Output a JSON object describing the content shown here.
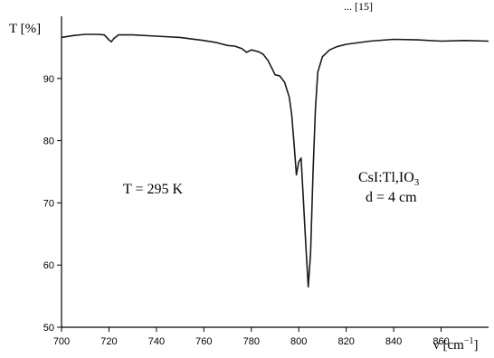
{
  "top_fragment": "... [15]",
  "chart_data": {
    "type": "line",
    "title": "",
    "ylabel": "T [%]",
    "xlabel_main": "ν [cm",
    "xlabel_sup": "−1",
    "xlabel_close": "]",
    "xlim": [
      700,
      880
    ],
    "ylim": [
      50,
      100
    ],
    "x_ticks": [
      700,
      720,
      740,
      760,
      780,
      800,
      820,
      840,
      860
    ],
    "y_ticks": [
      50,
      60,
      70,
      80,
      90
    ],
    "annotations": {
      "temperature": "T = 295 K",
      "sample_main": "CsI:Tl,IO",
      "sample_sub": "3",
      "thickness": "d = 4 cm"
    },
    "series": [
      {
        "color": "#1a1a1a",
        "points": [
          [
            700,
            96.6
          ],
          [
            705,
            96.9
          ],
          [
            710,
            97.1
          ],
          [
            715,
            97.1
          ],
          [
            718,
            97.0
          ],
          [
            720,
            96.2
          ],
          [
            721,
            95.9
          ],
          [
            722,
            96.4
          ],
          [
            724,
            97.0
          ],
          [
            730,
            97.0
          ],
          [
            740,
            96.8
          ],
          [
            750,
            96.6
          ],
          [
            760,
            96.1
          ],
          [
            765,
            95.8
          ],
          [
            770,
            95.3
          ],
          [
            773,
            95.2
          ],
          [
            776,
            94.8
          ],
          [
            778,
            94.2
          ],
          [
            780,
            94.6
          ],
          [
            783,
            94.3
          ],
          [
            785,
            93.9
          ],
          [
            787,
            92.9
          ],
          [
            789,
            91.4
          ],
          [
            790,
            90.6
          ],
          [
            792,
            90.4
          ],
          [
            794,
            89.4
          ],
          [
            796,
            87.0
          ],
          [
            797,
            84.2
          ],
          [
            798,
            79.5
          ],
          [
            799,
            74.5
          ],
          [
            800,
            76.6
          ],
          [
            801,
            77.2
          ],
          [
            802,
            70.0
          ],
          [
            803,
            63.0
          ],
          [
            804,
            56.5
          ],
          [
            805,
            62.0
          ],
          [
            806,
            75.0
          ],
          [
            807,
            85.0
          ],
          [
            808,
            91.0
          ],
          [
            810,
            93.5
          ],
          [
            813,
            94.6
          ],
          [
            816,
            95.1
          ],
          [
            820,
            95.5
          ],
          [
            830,
            96.0
          ],
          [
            840,
            96.3
          ],
          [
            850,
            96.2
          ],
          [
            860,
            96.0
          ],
          [
            870,
            96.1
          ],
          [
            880,
            96.0
          ]
        ]
      }
    ]
  }
}
